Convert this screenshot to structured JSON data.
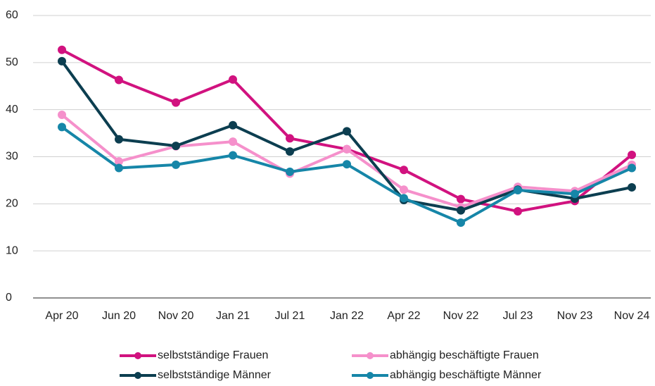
{
  "chart_data": {
    "type": "line",
    "categories": [
      "Apr 20",
      "Jun 20",
      "Nov 20",
      "Jan 21",
      "Jul 21",
      "Jan 22",
      "Apr 22",
      "Nov 22",
      "Jul 23",
      "Nov 23",
      "Nov 24"
    ],
    "series": [
      {
        "name": "selbstständige Frauen",
        "color": "#d1127f",
        "values": [
          52.7,
          46.3,
          41.5,
          46.4,
          33.9,
          31.6,
          27.2,
          21.0,
          18.4,
          20.6,
          30.4
        ]
      },
      {
        "name": "abhängig beschäftigte Frauen",
        "color": "#f590cb",
        "values": [
          38.9,
          29.0,
          32.2,
          33.2,
          26.4,
          31.6,
          23.0,
          19.3,
          23.6,
          22.7,
          28.3
        ]
      },
      {
        "name": "selbstständige Männer",
        "color": "#0c3e50",
        "values": [
          50.3,
          33.7,
          32.3,
          36.7,
          31.1,
          35.4,
          20.8,
          18.6,
          23.0,
          21.1,
          23.5
        ]
      },
      {
        "name": "abhängig beschäftigte Männer",
        "color": "#1686a8",
        "values": [
          36.3,
          27.6,
          28.3,
          30.3,
          26.8,
          28.4,
          21.2,
          16.0,
          22.9,
          22.1,
          27.6
        ]
      }
    ],
    "ylim": [
      0,
      60
    ],
    "yticks": [
      0,
      10,
      20,
      30,
      40,
      50,
      60
    ],
    "grid": true,
    "legend": "bottom"
  }
}
